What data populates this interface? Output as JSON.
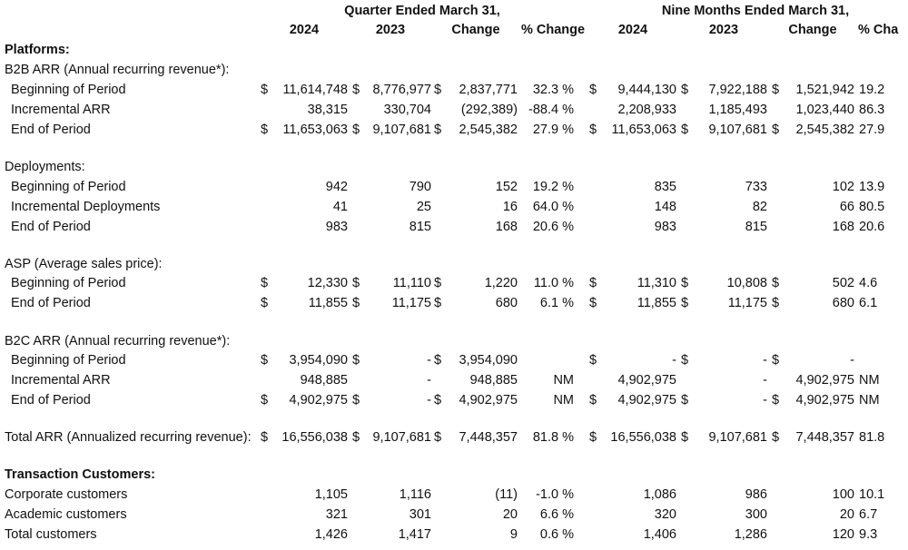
{
  "header": {
    "groups": [
      "Quarter Ended March 31,",
      "Nine Months Ended March 31,"
    ],
    "columns": [
      "2024",
      "2023",
      "Change",
      "% Change",
      "2024",
      "2023",
      "Change",
      "% Cha"
    ]
  },
  "rows": [
    {
      "label": "Platforms:",
      "bold": true
    },
    {
      "label": "B2B ARR (Annual recurring revenue*):"
    },
    {
      "label": "Beginning of Period",
      "indent": true,
      "cells": [
        "$",
        "11,614,748",
        "$",
        "8,776,977",
        "$",
        "2,837,771",
        "32.3 %",
        "$",
        "9,444,130",
        "$",
        "7,922,188",
        "$",
        "1,521,942",
        "19.2"
      ]
    },
    {
      "label": "Incremental ARR",
      "indent": true,
      "cells": [
        null,
        "38,315",
        null,
        "330,704",
        null,
        "(292,389)",
        "-88.4 %",
        null,
        "2,208,933",
        null,
        "1,185,493",
        null,
        "1,023,440",
        "86.3"
      ]
    },
    {
      "label": "End of Period",
      "indent": true,
      "cells": [
        "$",
        "11,653,063",
        "$",
        "9,107,681",
        "$",
        "2,545,382",
        "27.9 %",
        "$",
        "11,653,063",
        "$",
        "9,107,681",
        "$",
        "2,545,382",
        "27.9"
      ]
    },
    {
      "label": "Deployments:"
    },
    {
      "label": "Beginning of Period",
      "indent": true,
      "cells": [
        null,
        "942",
        null,
        "790",
        null,
        "152",
        "19.2 %",
        null,
        "835",
        null,
        "733",
        null,
        "102",
        "13.9"
      ]
    },
    {
      "label": "Incremental Deployments",
      "indent": true,
      "cells": [
        null,
        "41",
        null,
        "25",
        null,
        "16",
        "64.0 %",
        null,
        "148",
        null,
        "82",
        null,
        "66",
        "80.5"
      ]
    },
    {
      "label": "End of Period",
      "indent": true,
      "cells": [
        null,
        "983",
        null,
        "815",
        null,
        "168",
        "20.6 %",
        null,
        "983",
        null,
        "815",
        null,
        "168",
        "20.6"
      ]
    },
    {
      "label": "ASP (Average sales price):"
    },
    {
      "label": "Beginning of Period",
      "indent": true,
      "cells": [
        "$",
        "12,330",
        "$",
        "11,110",
        "$",
        "1,220",
        "11.0 %",
        "$",
        "11,310",
        "$",
        "10,808",
        "$",
        "502",
        "4.6"
      ]
    },
    {
      "label": "End of Period",
      "indent": true,
      "cells": [
        "$",
        "11,855",
        "$",
        "11,175",
        "$",
        "680",
        "6.1 %",
        "$",
        "11,855",
        "$",
        "11,175",
        "$",
        "680",
        "6.1"
      ]
    },
    {
      "label": "B2C ARR (Annual recurring revenue*):"
    },
    {
      "label": "Beginning of Period",
      "indent": true,
      "cells": [
        "$",
        "3,954,090",
        "$",
        "-",
        "$",
        "3,954,090",
        null,
        "$",
        "-",
        "$",
        "-",
        "$",
        "-",
        null
      ]
    },
    {
      "label": "Incremental ARR",
      "indent": true,
      "cells": [
        null,
        "948,885",
        null,
        "-",
        null,
        "948,885",
        "NM",
        null,
        "4,902,975",
        null,
        "-",
        null,
        "4,902,975",
        "NM"
      ]
    },
    {
      "label": "End of Period",
      "indent": true,
      "cells": [
        "$",
        "4,902,975",
        "$",
        "-",
        "$",
        "4,902,975",
        "NM",
        "$",
        "4,902,975",
        "$",
        "-",
        "$",
        "4,902,975",
        "NM"
      ]
    },
    {
      "label": "Total ARR (Annualized recurring revenue):",
      "cells": [
        "$",
        "16,556,038",
        "$",
        "9,107,681",
        "$",
        "7,448,357",
        "81.8 %",
        "$",
        "16,556,038",
        "$",
        "9,107,681",
        "$",
        "7,448,357",
        "81.8"
      ]
    },
    {
      "label": "Transaction Customers:",
      "bold": true
    },
    {
      "label": "Corporate customers",
      "cells": [
        null,
        "1,105",
        null,
        "1,116",
        null,
        "(11)",
        "-1.0 %",
        null,
        "1,086",
        null,
        "986",
        null,
        "100",
        "10.1"
      ]
    },
    {
      "label": "Academic customers",
      "cells": [
        null,
        "321",
        null,
        "301",
        null,
        "20",
        "6.6 %",
        null,
        "320",
        null,
        "300",
        null,
        "20",
        "6.7"
      ]
    },
    {
      "label": "Total customers",
      "cells": [
        null,
        "1,426",
        null,
        "1,417",
        null,
        "9",
        "0.6 %",
        null,
        "1,406",
        null,
        "1,286",
        null,
        "120",
        "9.3"
      ]
    }
  ]
}
